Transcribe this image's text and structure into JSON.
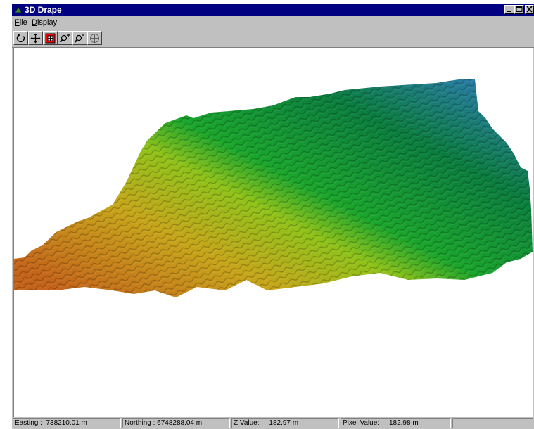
{
  "window": {
    "title": "3D Drape"
  },
  "menu": {
    "file": "File",
    "display": "Display"
  },
  "toolbar": [
    "rotate-icon",
    "pan-icon",
    "zoom-extent-icon",
    "zoom-in-icon",
    "zoom-out-icon",
    "center-icon"
  ],
  "terrain_colors": [
    "#2f7cbd",
    "#0b7d3e",
    "#1aa52c",
    "#8fc21a",
    "#c7a51a",
    "#c4641a"
  ],
  "status": {
    "easting": "Easting :  738210.01 m",
    "northing": "Northing : 6748288.04 m",
    "zvalue": "Z Value:     182.97 m",
    "pixel": "Pixel Value:     182.98 m"
  }
}
